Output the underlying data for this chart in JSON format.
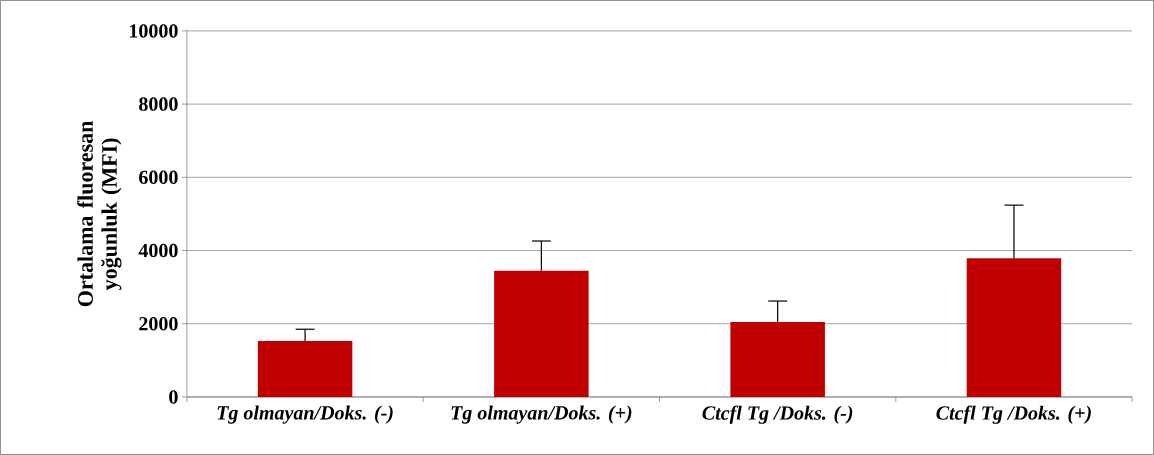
{
  "chart_data": {
    "type": "bar",
    "ylabel": "Ortalama fluoresan yoğunluk (MFI)",
    "categories": [
      "*Tg olmayan/Doks. (-)*",
      "*Tg olmayan/Doks. (+)*",
      "*Ctcfl Tg /Doks. (-)*",
      "*Ctcfl Tg /Doks. (+)*"
    ],
    "values": [
      1530,
      3450,
      2050,
      3790
    ],
    "errors": [
      [
        1530,
        1850
      ],
      [
        3450,
        4260
      ],
      [
        2050,
        2620
      ],
      [
        3790,
        5240
      ]
    ],
    "color": "#c00000",
    "ylim": [
      0,
      10000
    ],
    "yticks": [
      0,
      2000,
      4000,
      6000,
      8000,
      10000
    ],
    "grid": "y"
  }
}
